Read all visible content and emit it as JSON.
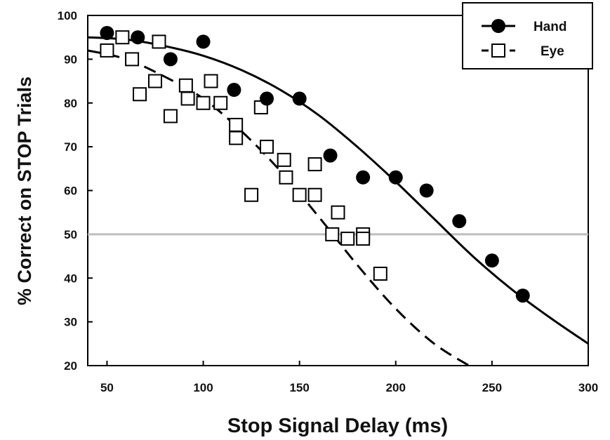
{
  "chart_data": {
    "type": "scatter",
    "xlabel": "Stop Signal Delay (ms)",
    "ylabel": "% Correct on STOP Trials",
    "xlim": [
      40,
      300
    ],
    "ylim": [
      20,
      100
    ],
    "xticks": [
      50,
      100,
      150,
      200,
      250,
      300
    ],
    "yticks": [
      20,
      30,
      40,
      50,
      60,
      70,
      80,
      90,
      100
    ],
    "grid": false,
    "legend_position": "top-right",
    "reference_line": {
      "y": 50,
      "color": "#bdbdbd"
    },
    "series": [
      {
        "name": "Hand",
        "marker": "filled-circle",
        "line_style": "solid",
        "color": "#000000",
        "points": [
          [
            50,
            96
          ],
          [
            66,
            95
          ],
          [
            83,
            90
          ],
          [
            100,
            94
          ],
          [
            116,
            83
          ],
          [
            133,
            81
          ],
          [
            150,
            81
          ],
          [
            166,
            68
          ],
          [
            183,
            63
          ],
          [
            200,
            63
          ],
          [
            216,
            60
          ],
          [
            233,
            53
          ],
          [
            250,
            44
          ],
          [
            266,
            36
          ]
        ],
        "fit_curve": [
          [
            40,
            95
          ],
          [
            60,
            94.5
          ],
          [
            80,
            93
          ],
          [
            100,
            90.8
          ],
          [
            120,
            87.5
          ],
          [
            140,
            83
          ],
          [
            160,
            77.2
          ],
          [
            180,
            70
          ],
          [
            200,
            62
          ],
          [
            220,
            53.5
          ],
          [
            240,
            45
          ],
          [
            260,
            37.5
          ],
          [
            280,
            31
          ],
          [
            300,
            25
          ]
        ]
      },
      {
        "name": "Eye",
        "marker": "open-square",
        "line_style": "dashed",
        "color": "#000000",
        "points": [
          [
            50,
            92
          ],
          [
            58,
            95
          ],
          [
            63,
            90
          ],
          [
            67,
            82
          ],
          [
            75,
            85
          ],
          [
            77,
            94
          ],
          [
            83,
            77
          ],
          [
            91,
            84
          ],
          [
            92,
            81
          ],
          [
            100,
            80
          ],
          [
            104,
            85
          ],
          [
            109,
            80
          ],
          [
            117,
            75
          ],
          [
            117,
            72
          ],
          [
            125,
            59
          ],
          [
            130,
            79
          ],
          [
            133,
            70
          ],
          [
            142,
            67
          ],
          [
            143,
            63
          ],
          [
            150,
            59
          ],
          [
            158,
            66
          ],
          [
            158,
            59
          ],
          [
            167,
            50
          ],
          [
            170,
            55
          ],
          [
            175,
            49
          ],
          [
            183,
            50
          ],
          [
            183,
            49
          ],
          [
            192,
            41
          ]
        ],
        "fit_curve": [
          [
            40,
            92
          ],
          [
            60,
            90
          ],
          [
            80,
            86
          ],
          [
            100,
            81
          ],
          [
            120,
            73.5
          ],
          [
            140,
            64.5
          ],
          [
            160,
            54
          ],
          [
            180,
            43
          ],
          [
            200,
            33
          ],
          [
            220,
            25
          ],
          [
            240,
            19.5
          ]
        ]
      }
    ]
  }
}
